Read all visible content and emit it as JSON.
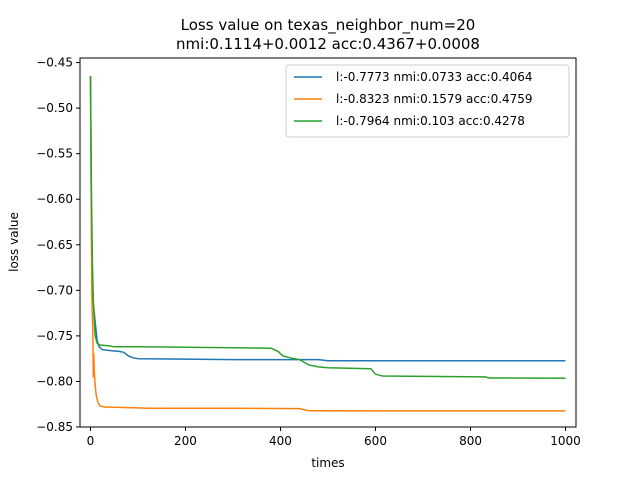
{
  "chart_data": {
    "type": "line",
    "title": "Loss value on texas_neighbor_num=20",
    "subtitle": "nmi:0.1114+0.0012 acc:0.4367+0.0008",
    "xlabel": "times",
    "ylabel": "loss value",
    "xlim": [
      -22,
      1022
    ],
    "ylim": [
      -0.85,
      -0.445
    ],
    "xticks": [
      0,
      200,
      400,
      600,
      800,
      1000
    ],
    "yticks": [
      -0.85,
      -0.8,
      -0.75,
      -0.7,
      -0.65,
      -0.6,
      -0.55,
      -0.5,
      -0.45
    ],
    "ytick_labels": [
      "−0.85",
      "−0.80",
      "−0.75",
      "−0.70",
      "−0.65",
      "−0.60",
      "−0.55",
      "−0.50",
      "−0.45"
    ],
    "grid": false,
    "legend_position": "top-right",
    "series": [
      {
        "name": "l:-0.7773 nmi:0.0733 acc:0.4064",
        "color": "#1f77b4",
        "points": [
          [
            0,
            -0.465
          ],
          [
            2,
            -0.62
          ],
          [
            4,
            -0.69
          ],
          [
            6,
            -0.715
          ],
          [
            8,
            -0.725
          ],
          [
            10,
            -0.735
          ],
          [
            14,
            -0.755
          ],
          [
            18,
            -0.762
          ],
          [
            25,
            -0.765
          ],
          [
            40,
            -0.766
          ],
          [
            60,
            -0.767
          ],
          [
            70,
            -0.768
          ],
          [
            80,
            -0.772
          ],
          [
            90,
            -0.774
          ],
          [
            100,
            -0.775
          ],
          [
            200,
            -0.7755
          ],
          [
            300,
            -0.776
          ],
          [
            400,
            -0.776
          ],
          [
            480,
            -0.776
          ],
          [
            500,
            -0.7773
          ],
          [
            700,
            -0.7773
          ],
          [
            1000,
            -0.7773
          ]
        ]
      },
      {
        "name": "l:-0.8323 nmi:0.1579 acc:0.4759",
        "color": "#ff7f0e",
        "points": [
          [
            0,
            -0.465
          ],
          [
            1,
            -0.55
          ],
          [
            2,
            -0.64
          ],
          [
            3,
            -0.71
          ],
          [
            5,
            -0.745
          ],
          [
            6,
            -0.795
          ],
          [
            7,
            -0.77
          ],
          [
            8,
            -0.79
          ],
          [
            10,
            -0.805
          ],
          [
            12,
            -0.815
          ],
          [
            15,
            -0.822
          ],
          [
            20,
            -0.827
          ],
          [
            30,
            -0.828
          ],
          [
            60,
            -0.8285
          ],
          [
            100,
            -0.829
          ],
          [
            120,
            -0.8295
          ],
          [
            300,
            -0.8295
          ],
          [
            440,
            -0.8298
          ],
          [
            460,
            -0.8322
          ],
          [
            700,
            -0.8323
          ],
          [
            1000,
            -0.8323
          ]
        ]
      },
      {
        "name": "l:-0.7964 nmi:0.103 acc:0.4278",
        "color": "#2ca02c",
        "points": [
          [
            0,
            -0.465
          ],
          [
            2,
            -0.59
          ],
          [
            4,
            -0.67
          ],
          [
            6,
            -0.71
          ],
          [
            8,
            -0.735
          ],
          [
            10,
            -0.75
          ],
          [
            14,
            -0.758
          ],
          [
            20,
            -0.76
          ],
          [
            40,
            -0.761
          ],
          [
            50,
            -0.762
          ],
          [
            100,
            -0.762
          ],
          [
            200,
            -0.7625
          ],
          [
            300,
            -0.763
          ],
          [
            380,
            -0.7635
          ],
          [
            395,
            -0.767
          ],
          [
            405,
            -0.772
          ],
          [
            420,
            -0.774
          ],
          [
            440,
            -0.776
          ],
          [
            460,
            -0.782
          ],
          [
            480,
            -0.784
          ],
          [
            500,
            -0.785
          ],
          [
            590,
            -0.786
          ],
          [
            600,
            -0.792
          ],
          [
            615,
            -0.794
          ],
          [
            700,
            -0.7945
          ],
          [
            830,
            -0.795
          ],
          [
            840,
            -0.7962
          ],
          [
            1000,
            -0.7964
          ]
        ]
      }
    ]
  }
}
